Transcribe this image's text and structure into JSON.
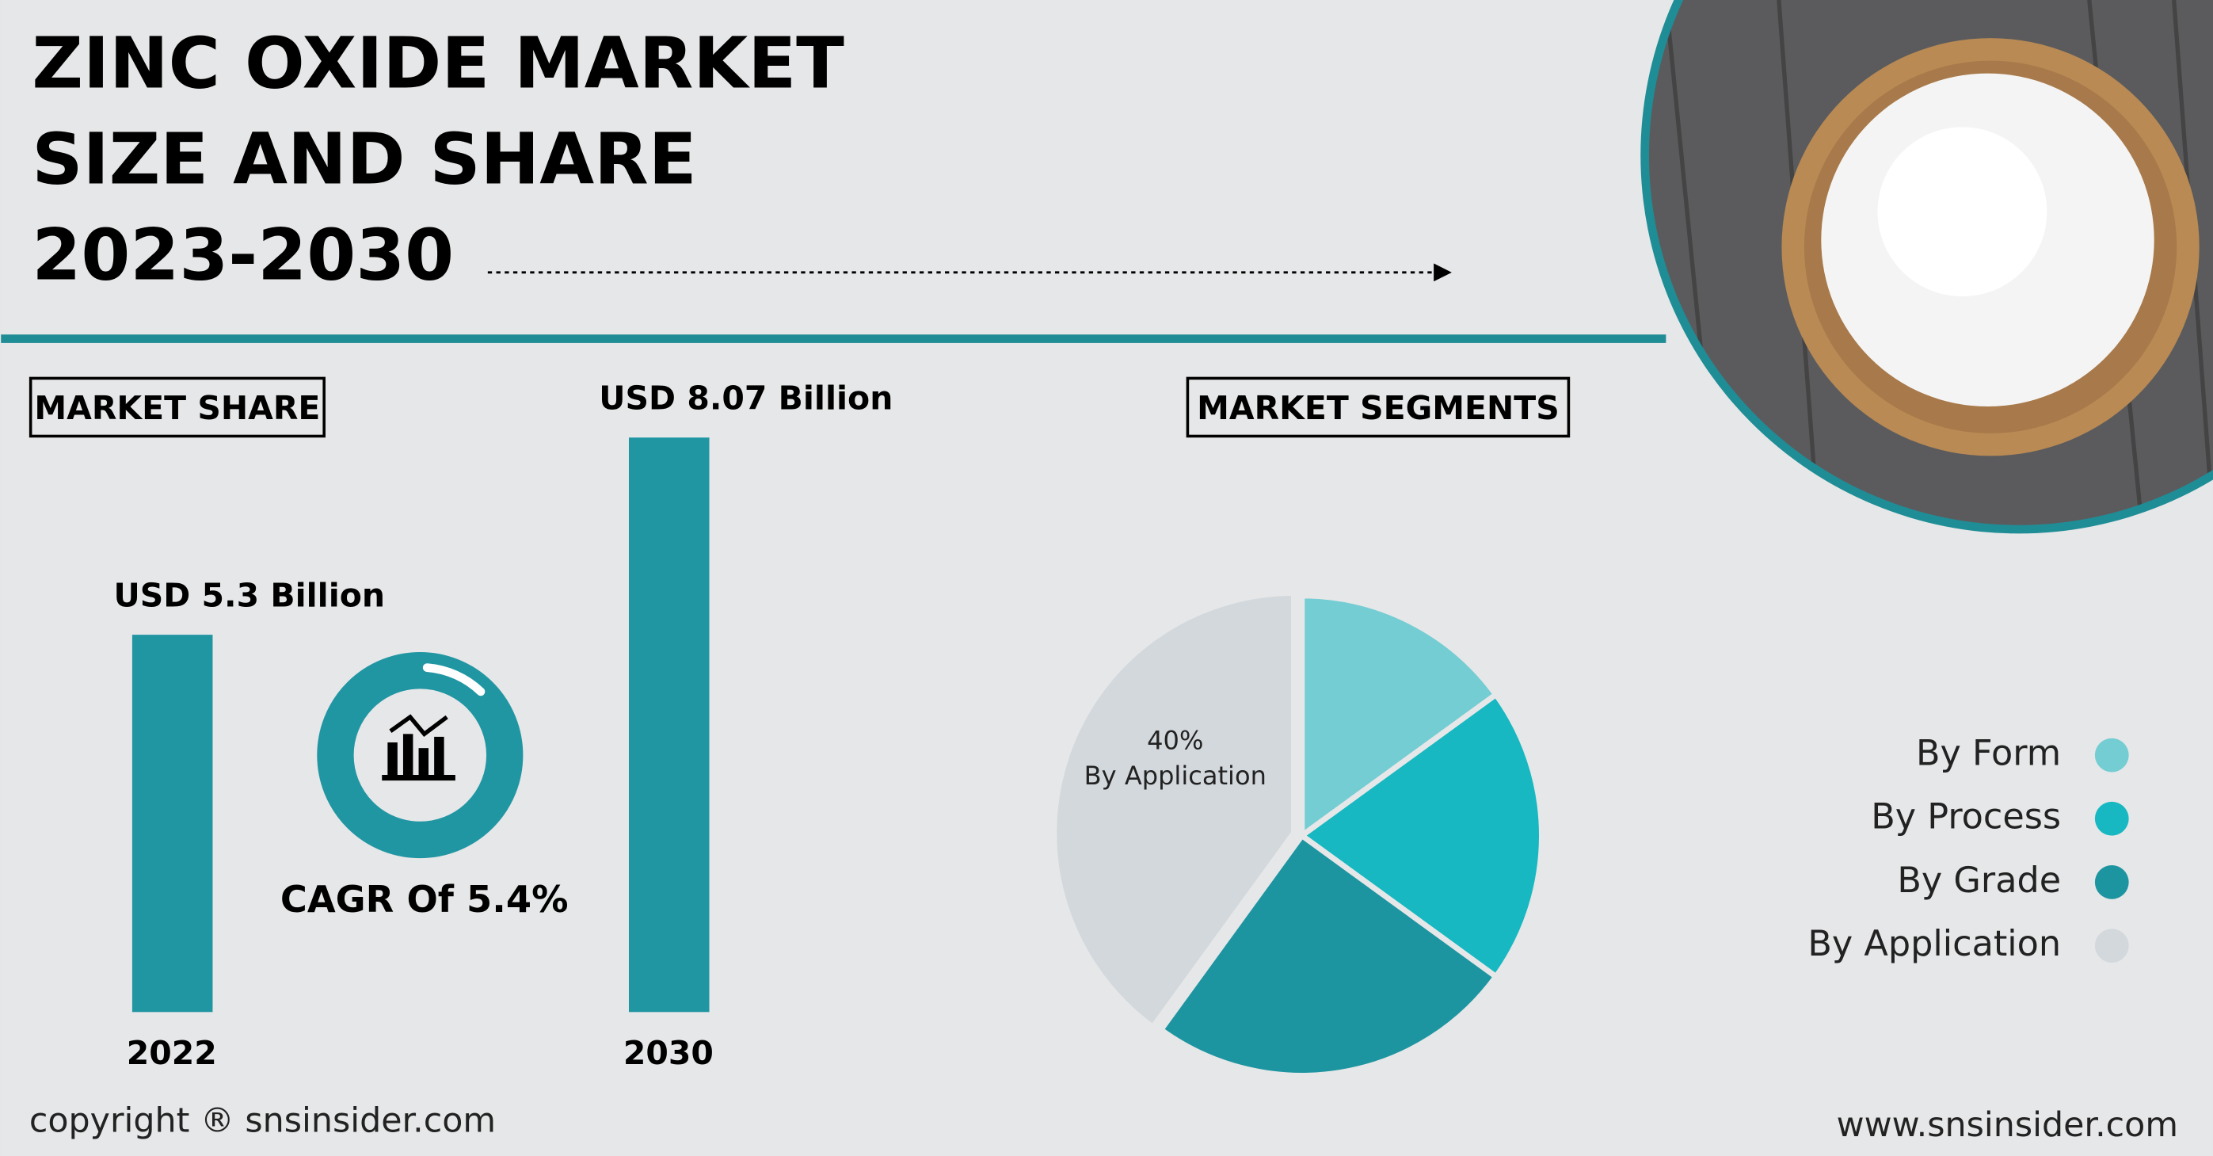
{
  "header": {
    "title": [
      "ZINC OXIDE MARKET",
      "SIZE AND SHARE",
      "2023-2030"
    ]
  },
  "chart_data": [
    {
      "type": "bar",
      "title": "MARKET SHARE",
      "categories": [
        "2022",
        "2030"
      ],
      "values": [
        5.3,
        8.07
      ],
      "value_labels": [
        "USD 5.3 Billion",
        "USD 8.07 Billion"
      ],
      "color": "#2196a3"
    },
    {
      "type": "pie",
      "title": "MARKET SEGMENTS",
      "categories": [
        "By Form",
        "By Process",
        "By Grade",
        "By Application"
      ],
      "values": [
        15,
        20,
        25,
        40
      ],
      "value_labels": [
        null,
        null,
        null,
        "40%"
      ],
      "colors": [
        "#74cdd3",
        "#17b8c1",
        "#1d95a1",
        "#d3d8dc"
      ]
    }
  ],
  "cagr": "CAGR Of 5.4%",
  "footer": {
    "copyright": "copyright ® snsinsider.com",
    "website": "www.snsinsider.com"
  }
}
